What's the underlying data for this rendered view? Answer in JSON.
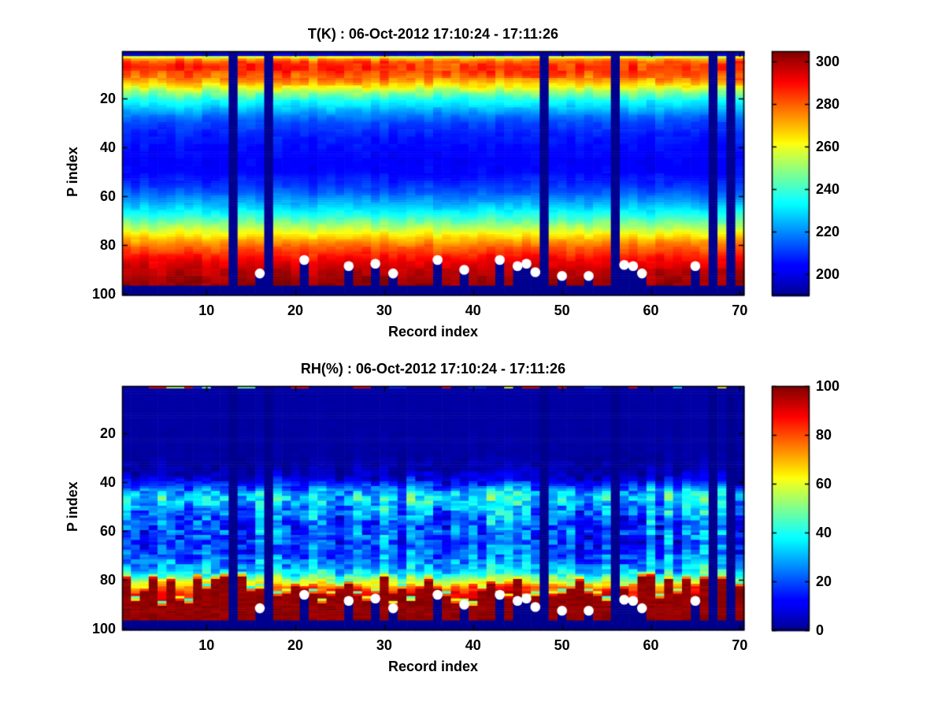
{
  "figure": {
    "background": "#ffffff",
    "marker_color": "#ffffff",
    "missing_data_color": "#00008f"
  },
  "chart_data": [
    {
      "id": "temperature",
      "type": "heatmap",
      "title": "T(K) : 06-Oct-2012 17:10:24 - 17:11:26",
      "xlabel": "Record index",
      "ylabel": "P index",
      "x_range": [
        1,
        70
      ],
      "y_range": [
        1,
        100
      ],
      "y_axis_reversed": true,
      "x_ticks": [
        10,
        20,
        30,
        40,
        50,
        60,
        70
      ],
      "y_ticks": [
        20,
        40,
        60,
        80,
        100
      ],
      "grid": false,
      "colormap": "jet",
      "clim": [
        190,
        305
      ],
      "colorbar_position": "right",
      "colorbar_ticks": [
        200,
        220,
        240,
        260,
        280,
        300
      ],
      "missing_records": [
        13,
        17,
        48,
        56,
        67,
        69
      ],
      "masked_below_p": 97,
      "surface_markers": [
        {
          "record": 16,
          "p": 91.5
        },
        {
          "record": 21,
          "p": 86
        },
        {
          "record": 26,
          "p": 88.5
        },
        {
          "record": 29,
          "p": 87.5
        },
        {
          "record": 31,
          "p": 91.5
        },
        {
          "record": 36,
          "p": 86
        },
        {
          "record": 39,
          "p": 90
        },
        {
          "record": 43,
          "p": 86
        },
        {
          "record": 45,
          "p": 88.5
        },
        {
          "record": 46,
          "p": 87.5
        },
        {
          "record": 47,
          "p": 91
        },
        {
          "record": 50,
          "p": 92.5
        },
        {
          "record": 53,
          "p": 92.5
        },
        {
          "record": 57,
          "p": 88
        },
        {
          "record": 58,
          "p": 88.5
        },
        {
          "record": 59,
          "p": 91.5
        },
        {
          "record": 65,
          "p": 88.5
        }
      ],
      "mean_profile_p_value": [
        [
          1,
          192
        ],
        [
          2,
          197
        ],
        [
          3,
          258
        ],
        [
          4,
          274
        ],
        [
          5,
          281
        ],
        [
          7,
          285
        ],
        [
          9,
          283
        ],
        [
          11,
          279
        ],
        [
          13,
          272
        ],
        [
          15,
          262
        ],
        [
          17,
          251
        ],
        [
          19,
          242
        ],
        [
          21,
          234
        ],
        [
          24,
          226
        ],
        [
          27,
          218
        ],
        [
          30,
          212
        ],
        [
          34,
          208
        ],
        [
          38,
          206
        ],
        [
          42,
          204
        ],
        [
          46,
          203
        ],
        [
          50,
          204
        ],
        [
          54,
          208
        ],
        [
          58,
          214
        ],
        [
          62,
          222
        ],
        [
          66,
          232
        ],
        [
          69,
          241
        ],
        [
          72,
          251
        ],
        [
          75,
          261
        ],
        [
          78,
          271
        ],
        [
          81,
          280
        ],
        [
          84,
          287
        ],
        [
          87,
          293
        ],
        [
          90,
          297
        ],
        [
          93,
          300
        ],
        [
          96,
          302
        ],
        [
          100,
          303
        ]
      ],
      "noise_amplitude_p": [
        [
          1,
          0.8
        ],
        [
          3,
          4.5
        ],
        [
          14,
          4.5
        ],
        [
          20,
          3
        ],
        [
          30,
          1.8
        ],
        [
          50,
          1.8
        ],
        [
          62,
          2.2
        ],
        [
          75,
          2.6
        ],
        [
          100,
          2.6
        ]
      ]
    },
    {
      "id": "relative_humidity",
      "type": "heatmap",
      "title": "RH(%) : 06-Oct-2012 17:10:24 - 17:11:26",
      "xlabel": "Record index",
      "ylabel": "P index",
      "x_range": [
        1,
        70
      ],
      "y_range": [
        1,
        100
      ],
      "y_axis_reversed": true,
      "x_ticks": [
        10,
        20,
        30,
        40,
        50,
        60,
        70
      ],
      "y_ticks": [
        20,
        40,
        60,
        80,
        100
      ],
      "grid": false,
      "colormap": "jet",
      "clim": [
        0,
        100
      ],
      "colorbar_position": "right",
      "colorbar_ticks": [
        0,
        20,
        40,
        60,
        80,
        100
      ],
      "missing_records": [
        13,
        17,
        48,
        56,
        67,
        69
      ],
      "masked_below_p": 97,
      "surface_markers": [
        {
          "record": 16,
          "p": 91.5
        },
        {
          "record": 21,
          "p": 86
        },
        {
          "record": 26,
          "p": 88.5
        },
        {
          "record": 29,
          "p": 87.5
        },
        {
          "record": 31,
          "p": 91.5
        },
        {
          "record": 36,
          "p": 86
        },
        {
          "record": 39,
          "p": 90
        },
        {
          "record": 43,
          "p": 86
        },
        {
          "record": 45,
          "p": 88.5
        },
        {
          "record": 46,
          "p": 87.5
        },
        {
          "record": 47,
          "p": 91
        },
        {
          "record": 50,
          "p": 92.5
        },
        {
          "record": 53,
          "p": 92.5
        },
        {
          "record": 57,
          "p": 88
        },
        {
          "record": 58,
          "p": 88.5
        },
        {
          "record": 59,
          "p": 91.5
        },
        {
          "record": 65,
          "p": 88.5
        }
      ],
      "mean_profile_p_value": [
        [
          1,
          2
        ],
        [
          2,
          2
        ],
        [
          30,
          2
        ],
        [
          34,
          3
        ],
        [
          37,
          6
        ],
        [
          39,
          10
        ],
        [
          41,
          17
        ],
        [
          43,
          27
        ],
        [
          45,
          34
        ],
        [
          47,
          37
        ],
        [
          49,
          32
        ],
        [
          51,
          28
        ],
        [
          54,
          24
        ],
        [
          57,
          21
        ],
        [
          60,
          23
        ],
        [
          63,
          20
        ],
        [
          66,
          19
        ],
        [
          69,
          21
        ],
        [
          72,
          25
        ],
        [
          74,
          29
        ],
        [
          76,
          34
        ],
        [
          78,
          42
        ],
        [
          80,
          55
        ],
        [
          83,
          75
        ],
        [
          86,
          90
        ],
        [
          90,
          96
        ],
        [
          100,
          98
        ]
      ],
      "noise_amplitude_p": [
        [
          1,
          0
        ],
        [
          28,
          0.8
        ],
        [
          36,
          4
        ],
        [
          42,
          10
        ],
        [
          48,
          12
        ],
        [
          58,
          12
        ],
        [
          68,
          10
        ],
        [
          76,
          9
        ],
        [
          100,
          6
        ]
      ],
      "moist_surface_layer": {
        "top_p_min": 78,
        "top_p_max": 92,
        "rh_saturated": 98
      },
      "top_row_segments": [
        {
          "record": 4,
          "rh": 90
        },
        {
          "record": 5,
          "rh": 90
        },
        {
          "record": 6,
          "rh": 55
        },
        {
          "record": 7,
          "rh": 55
        },
        {
          "record": 8,
          "rh": 90
        },
        {
          "record": 9,
          "rh": 16
        },
        {
          "record": 10,
          "rh": 48
        },
        {
          "record": 14,
          "rh": 48
        },
        {
          "record": 15,
          "rh": 48
        },
        {
          "record": 20,
          "rh": 90
        },
        {
          "record": 21,
          "rh": 90
        },
        {
          "record": 27,
          "rh": 90
        },
        {
          "record": 28,
          "rh": 90
        },
        {
          "record": 31,
          "rh": 16
        },
        {
          "record": 32,
          "rh": 16
        },
        {
          "record": 37,
          "rh": 90
        },
        {
          "record": 40,
          "rh": 16
        },
        {
          "record": 41,
          "rh": 16
        },
        {
          "record": 44,
          "rh": 60
        },
        {
          "record": 46,
          "rh": 90
        },
        {
          "record": 47,
          "rh": 90
        },
        {
          "record": 50,
          "rh": 90
        },
        {
          "record": 53,
          "rh": 16
        },
        {
          "record": 54,
          "rh": 16
        },
        {
          "record": 58,
          "rh": 90
        },
        {
          "record": 63,
          "rh": 35
        },
        {
          "record": 68,
          "rh": 65
        }
      ]
    }
  ]
}
